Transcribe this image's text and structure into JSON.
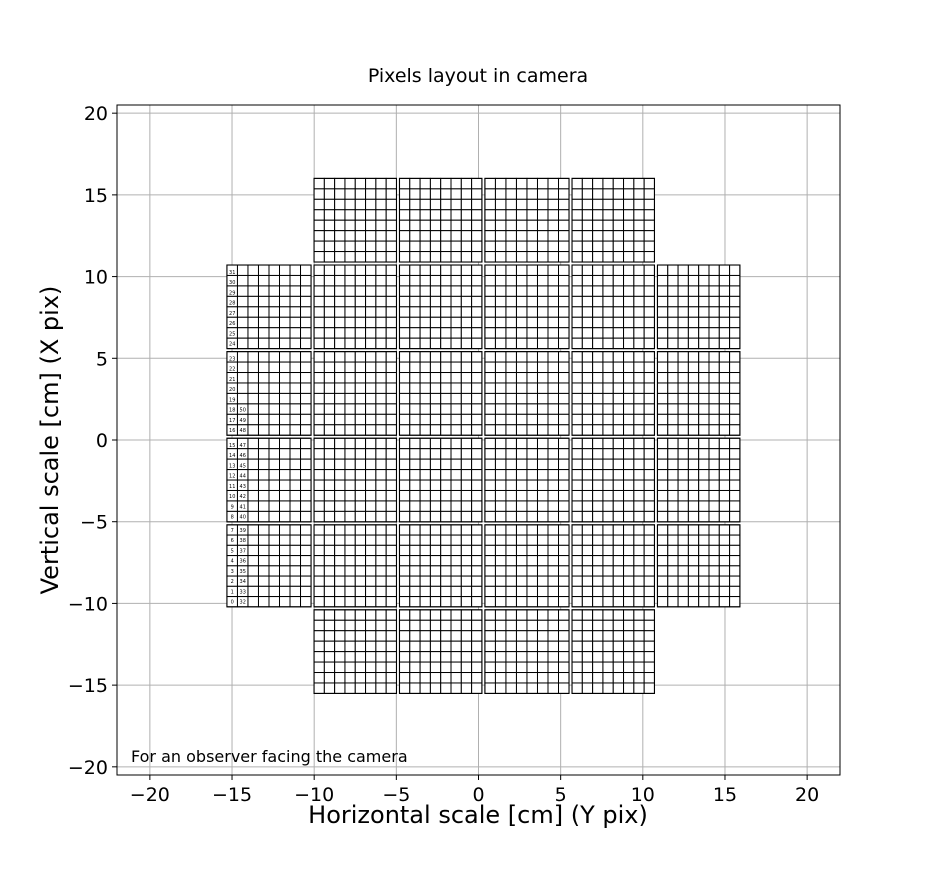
{
  "chart_data": {
    "type": "scatter",
    "title": "Pixels layout in camera",
    "xlabel": "Horizontal scale [cm] (Y pix)",
    "ylabel": "Vertical scale [cm] (X pix)",
    "xlim": [
      -22,
      22
    ],
    "ylim": [
      -20.5,
      20.5
    ],
    "xticks": [
      -20,
      -15,
      -10,
      -5,
      0,
      5,
      10,
      15,
      20
    ],
    "yticks": [
      -20,
      -15,
      -10,
      -5,
      0,
      5,
      10,
      15,
      20
    ],
    "xtick_labels": [
      "−20",
      "−15",
      "−10",
      "−5",
      "0",
      "5",
      "10",
      "15",
      "20"
    ],
    "ytick_labels": [
      "−20",
      "−15",
      "−10",
      "−5",
      "0",
      "5",
      "10",
      "15",
      "20"
    ],
    "grid": true,
    "annotation": "For an observer facing the camera",
    "module_columns_x": [
      [
        -15.4,
        -10.1
      ],
      [
        -10.1,
        -4.9
      ],
      [
        -4.9,
        0.3
      ],
      [
        0.3,
        5.6
      ],
      [
        5.6,
        10.8
      ],
      [
        10.8,
        16.0
      ]
    ],
    "module_rows_y": [
      [
        -15.6,
        -10.3
      ],
      [
        -10.3,
        -5.1
      ],
      [
        -5.1,
        0.2
      ],
      [
        0.2,
        5.5
      ],
      [
        5.5,
        10.8
      ],
      [
        10.8,
        16.1
      ]
    ],
    "modules_present": [
      [
        0,
        1,
        1,
        1,
        1,
        0
      ],
      [
        1,
        1,
        1,
        1,
        1,
        1
      ],
      [
        1,
        1,
        1,
        1,
        1,
        1
      ],
      [
        1,
        1,
        1,
        1,
        1,
        1
      ],
      [
        1,
        1,
        1,
        1,
        1,
        1
      ],
      [
        0,
        1,
        1,
        1,
        1,
        0
      ]
    ],
    "pixels_per_module_side": 8,
    "pixel_number_labels": {
      "column_1": [
        "0",
        "1",
        "2",
        "3",
        "4",
        "5",
        "6",
        "7",
        "8",
        "9",
        "10",
        "11",
        "12",
        "13",
        "14",
        "15",
        "16",
        "17",
        "18",
        "19",
        "20",
        "21",
        "22",
        "23",
        "24",
        "25",
        "26",
        "27",
        "28",
        "29",
        "30",
        "31"
      ],
      "column_2": [
        "32",
        "33",
        "34",
        "35",
        "36",
        "37",
        "38",
        "39",
        "40",
        "41",
        "42",
        "43",
        "44",
        "45",
        "46",
        "47",
        "48",
        "49",
        "50"
      ]
    }
  }
}
